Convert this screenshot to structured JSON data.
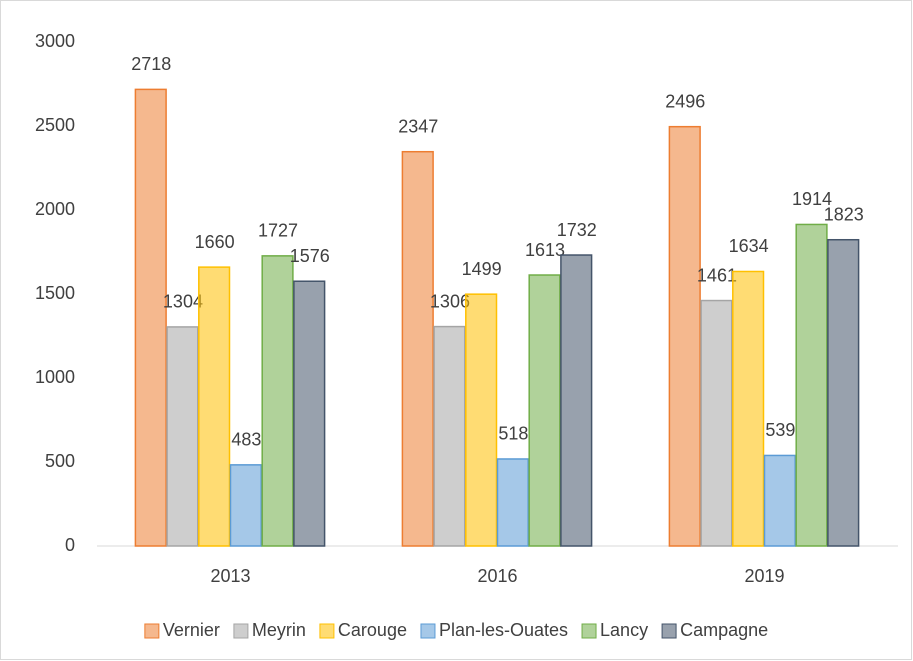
{
  "chart_data": {
    "type": "bar",
    "categories": [
      "2013",
      "2016",
      "2019"
    ],
    "series": [
      {
        "name": "Vernier",
        "color": "#ed7d31",
        "values": [
          2718,
          2347,
          2496
        ]
      },
      {
        "name": "Meyrin",
        "color": "#a5a5a5",
        "values": [
          1304,
          1306,
          1461
        ]
      },
      {
        "name": "Carouge",
        "color": "#ffc000",
        "values": [
          1660,
          1499,
          1634
        ]
      },
      {
        "name": "Plan-les-Ouates",
        "color": "#5b9bd5",
        "values": [
          483,
          518,
          539
        ]
      },
      {
        "name": "Lancy",
        "color": "#70ad47",
        "values": [
          1727,
          1613,
          1914
        ]
      },
      {
        "name": "Campagne",
        "color": "#44546a",
        "values": [
          1576,
          1732,
          1823
        ]
      }
    ],
    "ylim": [
      0,
      3000
    ],
    "yticks": [
      0,
      500,
      1000,
      1500,
      2000,
      2500,
      3000
    ],
    "grid": false,
    "legend": "bottom"
  }
}
